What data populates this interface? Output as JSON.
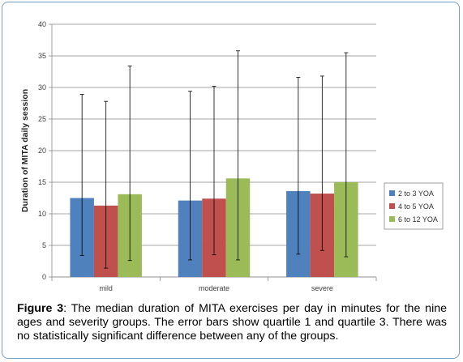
{
  "chart_data": {
    "type": "bar",
    "ylabel": "Duration of MITA daily session",
    "ylim": [
      0,
      40
    ],
    "yticks": [
      0,
      5,
      10,
      15,
      20,
      25,
      30,
      35,
      40
    ],
    "categories": [
      "mild",
      "moderate",
      "severe"
    ],
    "grid": true,
    "legend": "right",
    "series": [
      {
        "name": "2 to 3 YOA",
        "color": "#4f81bd",
        "values": [
          12.5,
          12.1,
          13.6
        ],
        "q1": [
          3.4,
          2.7,
          3.6
        ],
        "q3": [
          28.9,
          29.4,
          31.6
        ]
      },
      {
        "name": "4 to 5 YOA",
        "color": "#c0504d",
        "values": [
          11.3,
          12.4,
          13.2
        ],
        "q1": [
          1.4,
          3.5,
          4.2
        ],
        "q3": [
          27.8,
          30.2,
          31.8
        ]
      },
      {
        "name": "6 to 12 YOA",
        "color": "#9bbb59",
        "values": [
          13.1,
          15.6,
          15.0
        ],
        "q1": [
          2.6,
          2.7,
          3.2
        ],
        "q3": [
          33.4,
          35.8,
          35.5
        ]
      }
    ]
  },
  "caption": {
    "label": "Figure 3",
    "text": ": The median duration of MITA exercises per day in minutes for the nine ages and severity groups. The error bars show quartile 1 and quartile 3. There was no statistically significant difference between any of the groups."
  }
}
